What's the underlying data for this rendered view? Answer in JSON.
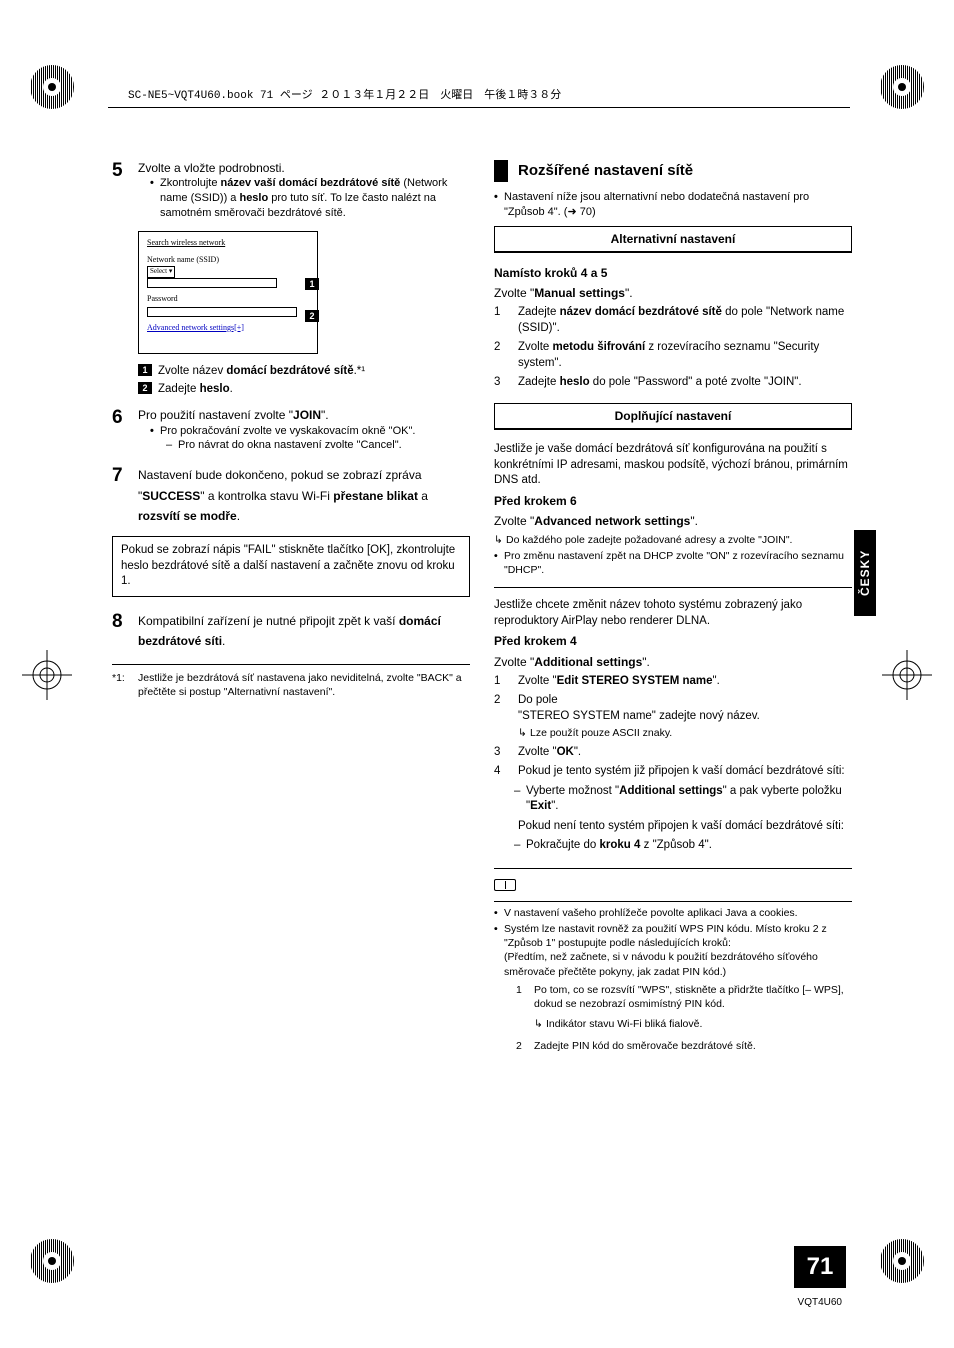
{
  "header": {
    "running_head": "SC-NE5~VQT4U60.book  71 ページ  ２０１３年１月２２日　火曜日　午後１時３８分"
  },
  "left": {
    "step5": {
      "num": "5",
      "text": "Zvolte a vložte podrobnosti.",
      "bullet": "Zkontrolujte <b>název vaší domácí bezdrátové sítě</b> (Network name (SSID)) a <b>heslo</b> pro tuto síť. To lze často nalézt na samotném směrovači bezdrátové sítě.",
      "ui": {
        "search": "Search wireless network",
        "ssid_label": "Network name (SSID)",
        "select_option": "Select",
        "pw_label": "Password",
        "adv_link": "Advanced network settings[+]"
      },
      "legend1": "Zvolte název <b>domácí bezdrátové sítě</b>.*¹",
      "legend2": "Zadejte <b>heslo</b>."
    },
    "step6": {
      "num": "6",
      "text": "Pro použití nastavení zvolte \"<b>JOIN</b>\".",
      "bullet": "Pro pokračování zvolte ve vyskakovacím okně \"OK\".",
      "dash": "Pro návrat do okna nastavení zvolte \"Cancel\"."
    },
    "step7": {
      "num": "7",
      "text": "Nastavení bude dokončeno, pokud se zobrazí zpráva \"<b>SUCCESS</b>\" a kontrolka stavu Wi-Fi <b>přestane blikat</b> a <b>rozsvítí se modře</b>."
    },
    "note_box": "Pokud se zobrazí nápis \"FAIL\" stiskněte tlačítko [OK], zkontrolujte heslo bezdrátové sítě a další nastavení a začněte znovu od kroku 1.",
    "step8": {
      "num": "8",
      "text": "Kompatibilní zařízení je nutné připojit zpět k vaší <b>domácí bezdrátové síti</b>."
    },
    "footnote": {
      "label": "*1:",
      "text": "Jestliže je bezdrátová síť nastavena jako neviditelná, zvolte \"BACK\" a přečtěte si postup \"Alternativní nastavení\"."
    }
  },
  "right": {
    "section_title": "Rozšířené nastavení sítě",
    "intro_bullet": "Nastavení níže jsou alternativní nebo dodatečná nastavení pro \"Způsob 4\". (➜ 70)",
    "frame1": {
      "title": "Alternativní nastavení",
      "lead_bold": "Namísto kroků 4 a 5",
      "lead2": "Zvolte \"<b>Manual settings</b>\".",
      "i1": "Zadejte <b>název domácí bezdrátové sítě</b> do pole \"Network name (SSID)\".",
      "i2": "Zvolte <b>metodu šifrování</b> z rozevíracího seznamu \"Security system\".",
      "i3": "Zadejte <b>heslo</b> do pole \"Password\" a poté zvolte \"JOIN\"."
    },
    "frame2": {
      "title": "Doplňující nastavení",
      "para1": "Jestliže je vaše domácí bezdrátová síť konfigurována na použití s konkrétními IP adresami, maskou podsítě, výchozí bránou, primárním DNS atd.",
      "bold1": "Před krokem 6",
      "line1": "Zvolte \"<b>Advanced network settings</b>\".",
      "arrow1": "Do každého pole zadejte požadované adresy a zvolte \"JOIN\".",
      "bullet1": "Pro změnu nastavení zpět na DHCP zvolte \"ON\" z rozevíracího seznamu \"DHCP\".",
      "para2": "Jestliže chcete změnit název tohoto systému zobrazený jako reproduktory AirPlay nebo renderer DLNA.",
      "bold2": "Před krokem 4",
      "line2": "Zvolte \"<b>Additional settings</b>\".",
      "s1": "Zvolte \"<b>Edit STEREO SYSTEM name</b>\".",
      "s2_a": "Do pole",
      "s2_b": "\"STEREO SYSTEM name\" zadejte nový název.",
      "s2_arrow": "Lze použít pouze ASCII znaky.",
      "s3": "Zvolte \"<b>OK</b>\".",
      "s4_a": "Pokud je tento systém již připojen k vaší domácí bezdrátové síti:",
      "s4_dash": "Vyberte možnost \"<b>Additional settings</b>\" a pak vyberte položku \"<b>Exit</b>\".",
      "s4_b": "Pokud není tento systém připojen k vaší domácí bezdrátové síti:",
      "s4_dash2": "Pokračujte do <b>kroku 4</b> z \"Způsob 4\"."
    },
    "notes": {
      "n1": "V nastavení vašeho prohlížeče povolte aplikaci Java a cookies.",
      "n2_a": "Systém lze nastavit rovněž za použití WPS PIN kódu. Místo kroku 2 z \"Způsob 1\" postupujte podle následujících kroků:",
      "n2_paren": "(Předtím, než začnete, si v návodu k použití bezdrátového síťového směrovače přečtěte pokyny, jak zadat PIN kód.)",
      "sub1": "Po tom, co se rozsvítí \"WPS\", stiskněte a přidržte tlačítko [– WPS], dokud se nezobrazí osmimístný PIN kód.",
      "sub1_arrow": "Indikátor stavu Wi-Fi bliká fialově.",
      "sub2": "Zadejte PIN kód do směrovače bezdrátové sítě."
    }
  },
  "side_tab": "ČESKY",
  "page_number": "71",
  "model_code": "VQT4U60"
}
